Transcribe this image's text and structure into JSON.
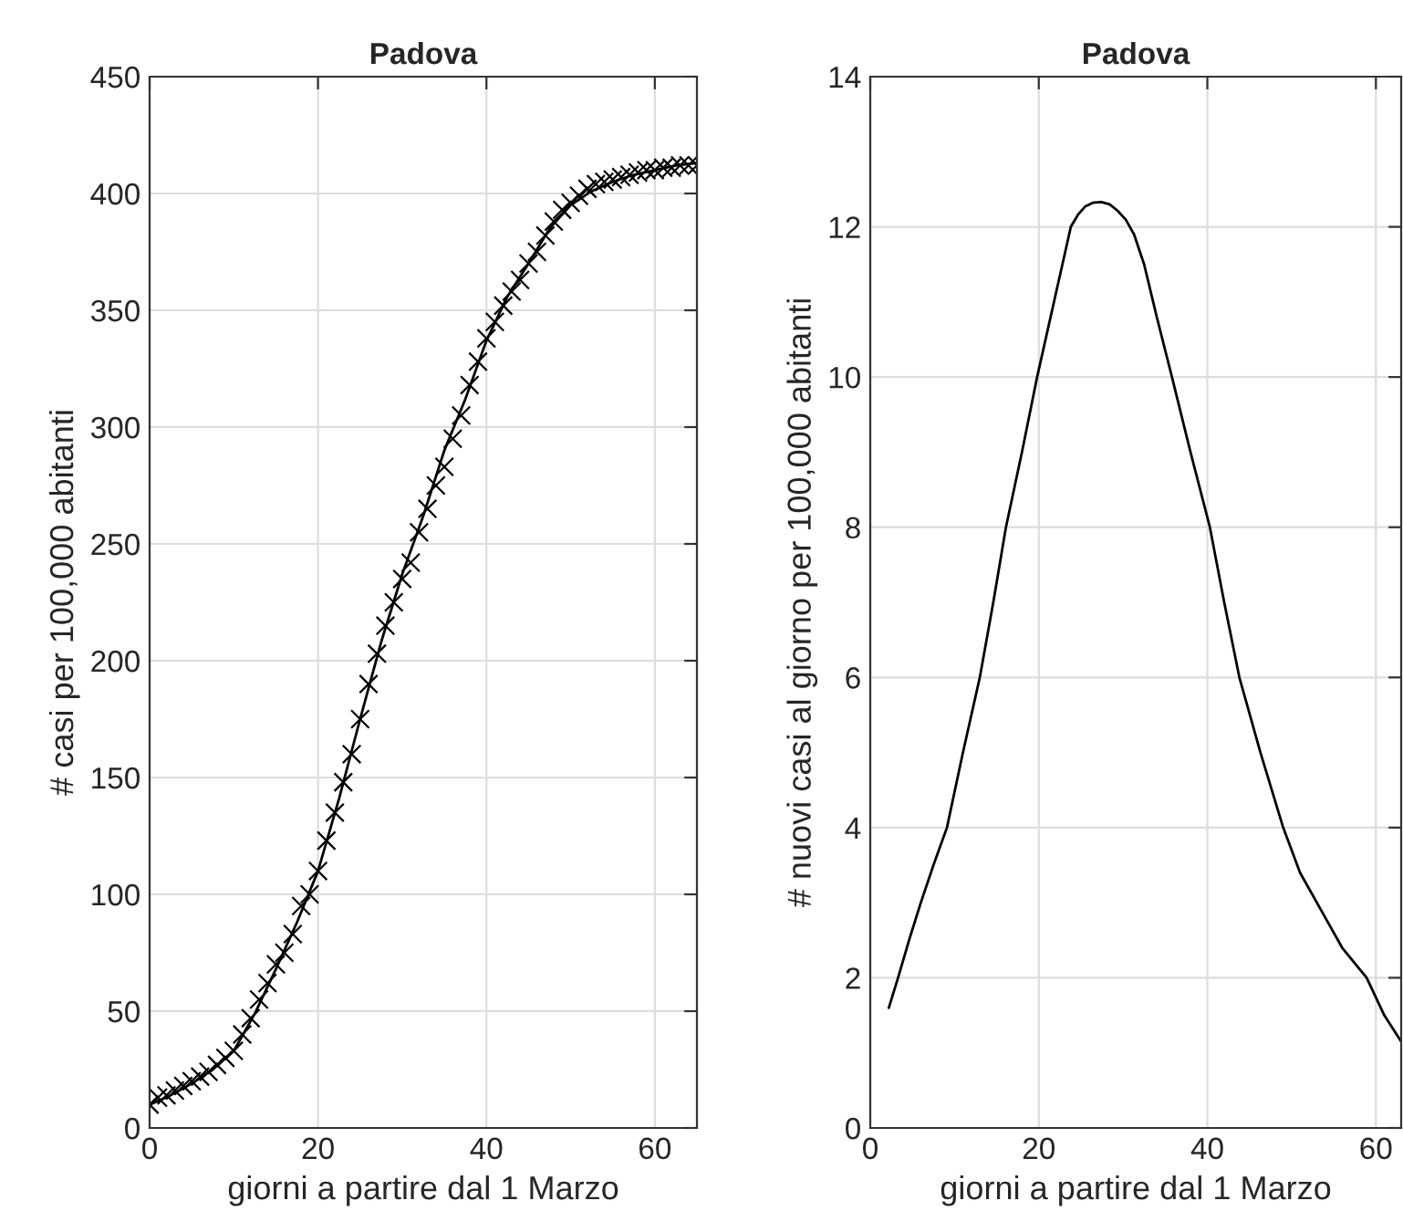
{
  "chart_data": [
    {
      "type": "line",
      "title": "Padova",
      "xlabel": "giorni a partire dal 1 Marzo",
      "ylabel": "# casi per 100,000 abitanti",
      "xlim": [
        0,
        65
      ],
      "xticks": [
        0,
        20,
        40,
        60
      ],
      "ylim": [
        0,
        450
      ],
      "yticks": [
        0,
        50,
        100,
        150,
        200,
        250,
        300,
        350,
        400,
        450
      ],
      "grid": true,
      "legend": false,
      "series": [
        {
          "type": "scatter",
          "marker": "cross",
          "color": "#000000",
          "x": [
            0,
            1,
            2,
            3,
            4,
            5,
            6,
            7,
            8,
            9,
            10,
            11,
            12,
            13,
            14,
            15,
            16,
            17,
            18,
            19,
            20,
            21,
            22,
            23,
            24,
            25,
            26,
            27,
            28,
            29,
            30,
            31,
            32,
            33,
            34,
            35,
            36,
            37,
            38,
            39,
            40,
            41,
            42,
            43,
            44,
            45,
            46,
            47,
            48,
            49,
            50,
            51,
            52,
            53,
            54,
            55,
            56,
            57,
            58,
            59,
            60,
            61,
            62,
            63,
            64,
            65
          ],
          "values": [
            10,
            13,
            14,
            16,
            18,
            20,
            22,
            24,
            27,
            30,
            33,
            40,
            47,
            55,
            62,
            70,
            75,
            83,
            95,
            100,
            110,
            123,
            135,
            148,
            160,
            175,
            190,
            203,
            215,
            225,
            235,
            242,
            255,
            265,
            275,
            283,
            295,
            305,
            318,
            328,
            338,
            345,
            352,
            358,
            363,
            370,
            375,
            382,
            388,
            393,
            396,
            399,
            402,
            404,
            405,
            406,
            407,
            408,
            409,
            410,
            410,
            411,
            411,
            412,
            412,
            412
          ]
        },
        {
          "line_style": "solid",
          "color": "#000000",
          "x": [
            0,
            2.5,
            5,
            7.5,
            10,
            12.5,
            15,
            17.5,
            20,
            22.5,
            25,
            27.5,
            30,
            32.5,
            35,
            37.5,
            40,
            42.5,
            45,
            47.5,
            50,
            52.5,
            55,
            57.5,
            60,
            62.5,
            65
          ],
          "values": [
            10,
            14,
            19,
            25,
            33,
            49,
            68,
            88,
            110,
            141,
            175,
            208,
            237,
            262,
            290,
            312,
            337,
            356,
            370,
            385,
            395,
            401,
            405,
            408,
            410,
            412,
            413
          ]
        }
      ]
    },
    {
      "type": "line",
      "title": "Padova",
      "xlabel": "giorni a partire dal 1 Marzo",
      "ylabel": "# nuovi casi al giorno per 100,000 abitanti",
      "xlim": [
        0,
        63
      ],
      "xticks": [
        0,
        20,
        40,
        60
      ],
      "ylim": [
        0,
        14
      ],
      "yticks": [
        0,
        2,
        4,
        6,
        8,
        10,
        12,
        14
      ],
      "grid": true,
      "legend": false,
      "series": [
        {
          "line_style": "solid",
          "color": "#000000",
          "x": [
            2.2,
            3.3,
            4.6,
            6,
            7.5,
            9.1,
            11,
            13,
            14.6,
            16.1,
            18,
            19.8,
            21.8,
            22.8,
            23.8,
            24.7,
            25.5,
            26.4,
            27.4,
            28.4,
            29.3,
            30.3,
            31.3,
            32.5,
            34,
            35.8,
            38,
            40.3,
            42,
            43.8,
            46.3,
            49,
            51,
            53.5,
            56,
            58.9,
            61,
            63
          ],
          "values": [
            1.6,
            2,
            2.5,
            3,
            3.5,
            4,
            5,
            6,
            7,
            8,
            9,
            10,
            11,
            11.5,
            12,
            12.17,
            12.27,
            12.32,
            12.33,
            12.3,
            12.22,
            12.1,
            11.9,
            11.5,
            10.8,
            10,
            9,
            8,
            7,
            6,
            5,
            4,
            3.4,
            2.9,
            2.4,
            2,
            1.5,
            1.15
          ]
        }
      ]
    }
  ]
}
